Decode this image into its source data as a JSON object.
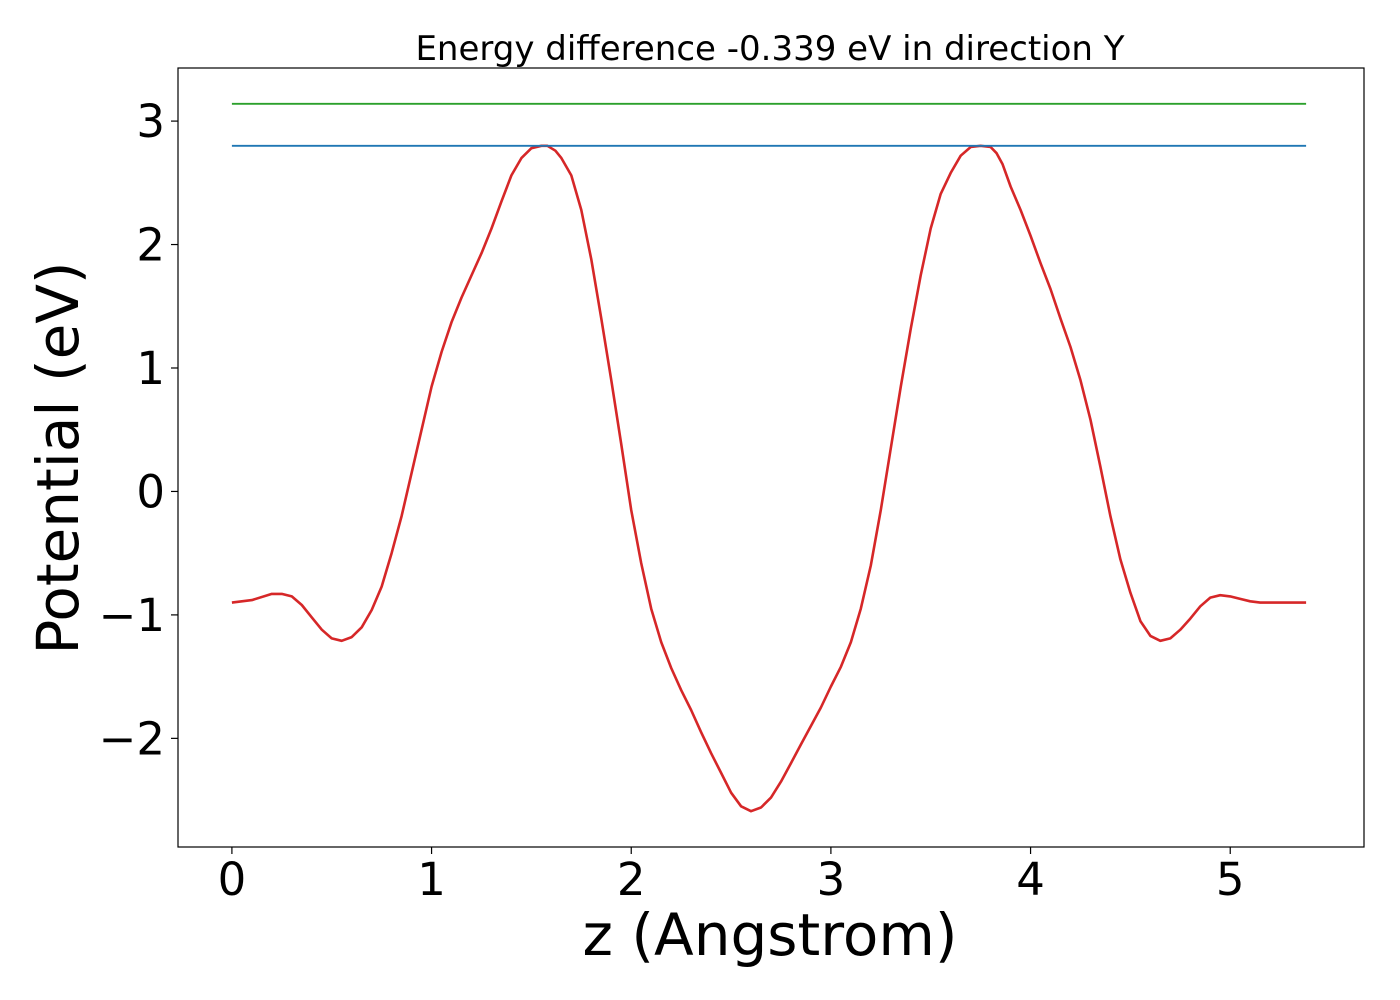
{
  "chart_data": {
    "type": "line",
    "title": "Energy difference -0.339 eV in direction Y",
    "xlabel": "z (Angstrom)",
    "ylabel": "Potential (eV)",
    "xlim": [
      -0.27,
      5.67
    ],
    "ylim": [
      -2.88,
      3.43
    ],
    "xticks": [
      0,
      1,
      2,
      3,
      4,
      5
    ],
    "yticks": [
      -2,
      -1,
      0,
      1,
      2,
      3
    ],
    "ytick_labels": [
      "−2",
      "−1",
      "0",
      "1",
      "2",
      "3"
    ],
    "grid": false,
    "series": [
      {
        "color": "#d62728",
        "x": [
          0.0,
          0.1,
          0.2,
          0.25,
          0.3,
          0.35,
          0.4,
          0.45,
          0.5,
          0.55,
          0.6,
          0.65,
          0.7,
          0.75,
          0.8,
          0.85,
          0.9,
          0.95,
          1.0,
          1.05,
          1.1,
          1.15,
          1.2,
          1.25,
          1.3,
          1.35,
          1.4,
          1.45,
          1.5,
          1.55,
          1.58,
          1.62,
          1.65,
          1.7,
          1.75,
          1.8,
          1.85,
          1.9,
          1.95,
          2.0,
          2.05,
          2.1,
          2.15,
          2.2,
          2.25,
          2.3,
          2.35,
          2.4,
          2.45,
          2.5,
          2.55,
          2.6,
          2.65,
          2.7,
          2.75,
          2.8,
          2.85,
          2.9,
          2.95,
          3.0,
          3.05,
          3.1,
          3.15,
          3.2,
          3.25,
          3.3,
          3.35,
          3.4,
          3.45,
          3.5,
          3.55,
          3.6,
          3.65,
          3.7,
          3.75,
          3.8,
          3.83,
          3.86,
          3.9,
          3.95,
          4.0,
          4.05,
          4.1,
          4.15,
          4.2,
          4.25,
          4.3,
          4.35,
          4.4,
          4.45,
          4.5,
          4.55,
          4.6,
          4.65,
          4.7,
          4.75,
          4.8,
          4.85,
          4.9,
          4.95,
          5.0,
          5.05,
          5.1,
          5.15,
          5.2,
          5.25,
          5.3,
          5.38
        ],
        "values": [
          -0.9,
          -0.88,
          -0.83,
          -0.83,
          -0.85,
          -0.92,
          -1.02,
          -1.12,
          -1.19,
          -1.21,
          -1.18,
          -1.1,
          -0.96,
          -0.77,
          -0.5,
          -0.2,
          0.15,
          0.5,
          0.85,
          1.13,
          1.37,
          1.57,
          1.75,
          1.93,
          2.13,
          2.35,
          2.56,
          2.7,
          2.78,
          2.8,
          2.8,
          2.76,
          2.7,
          2.56,
          2.28,
          1.88,
          1.4,
          0.9,
          0.38,
          -0.15,
          -0.58,
          -0.95,
          -1.22,
          -1.43,
          -1.61,
          -1.77,
          -1.95,
          -2.12,
          -2.28,
          -2.44,
          -2.55,
          -2.59,
          -2.56,
          -2.48,
          -2.35,
          -2.2,
          -2.05,
          -1.9,
          -1.75,
          -1.58,
          -1.42,
          -1.22,
          -0.95,
          -0.6,
          -0.15,
          0.35,
          0.85,
          1.32,
          1.75,
          2.13,
          2.41,
          2.58,
          2.72,
          2.79,
          2.8,
          2.79,
          2.74,
          2.65,
          2.47,
          2.28,
          2.07,
          1.85,
          1.64,
          1.4,
          1.17,
          0.9,
          0.58,
          0.2,
          -0.2,
          -0.55,
          -0.82,
          -1.05,
          -1.17,
          -1.21,
          -1.19,
          -1.12,
          -1.03,
          -0.93,
          -0.86,
          -0.84,
          -0.85,
          -0.87,
          -0.89,
          -0.9,
          -0.9,
          -0.9,
          -0.9,
          -0.9
        ]
      },
      {
        "color": "#1f77b4",
        "x": [
          0.0,
          5.38
        ],
        "values": [
          2.8,
          2.8
        ]
      },
      {
        "color": "#2ca02c",
        "x": [
          0.0,
          5.38
        ],
        "values": [
          3.14,
          3.14
        ]
      }
    ]
  }
}
